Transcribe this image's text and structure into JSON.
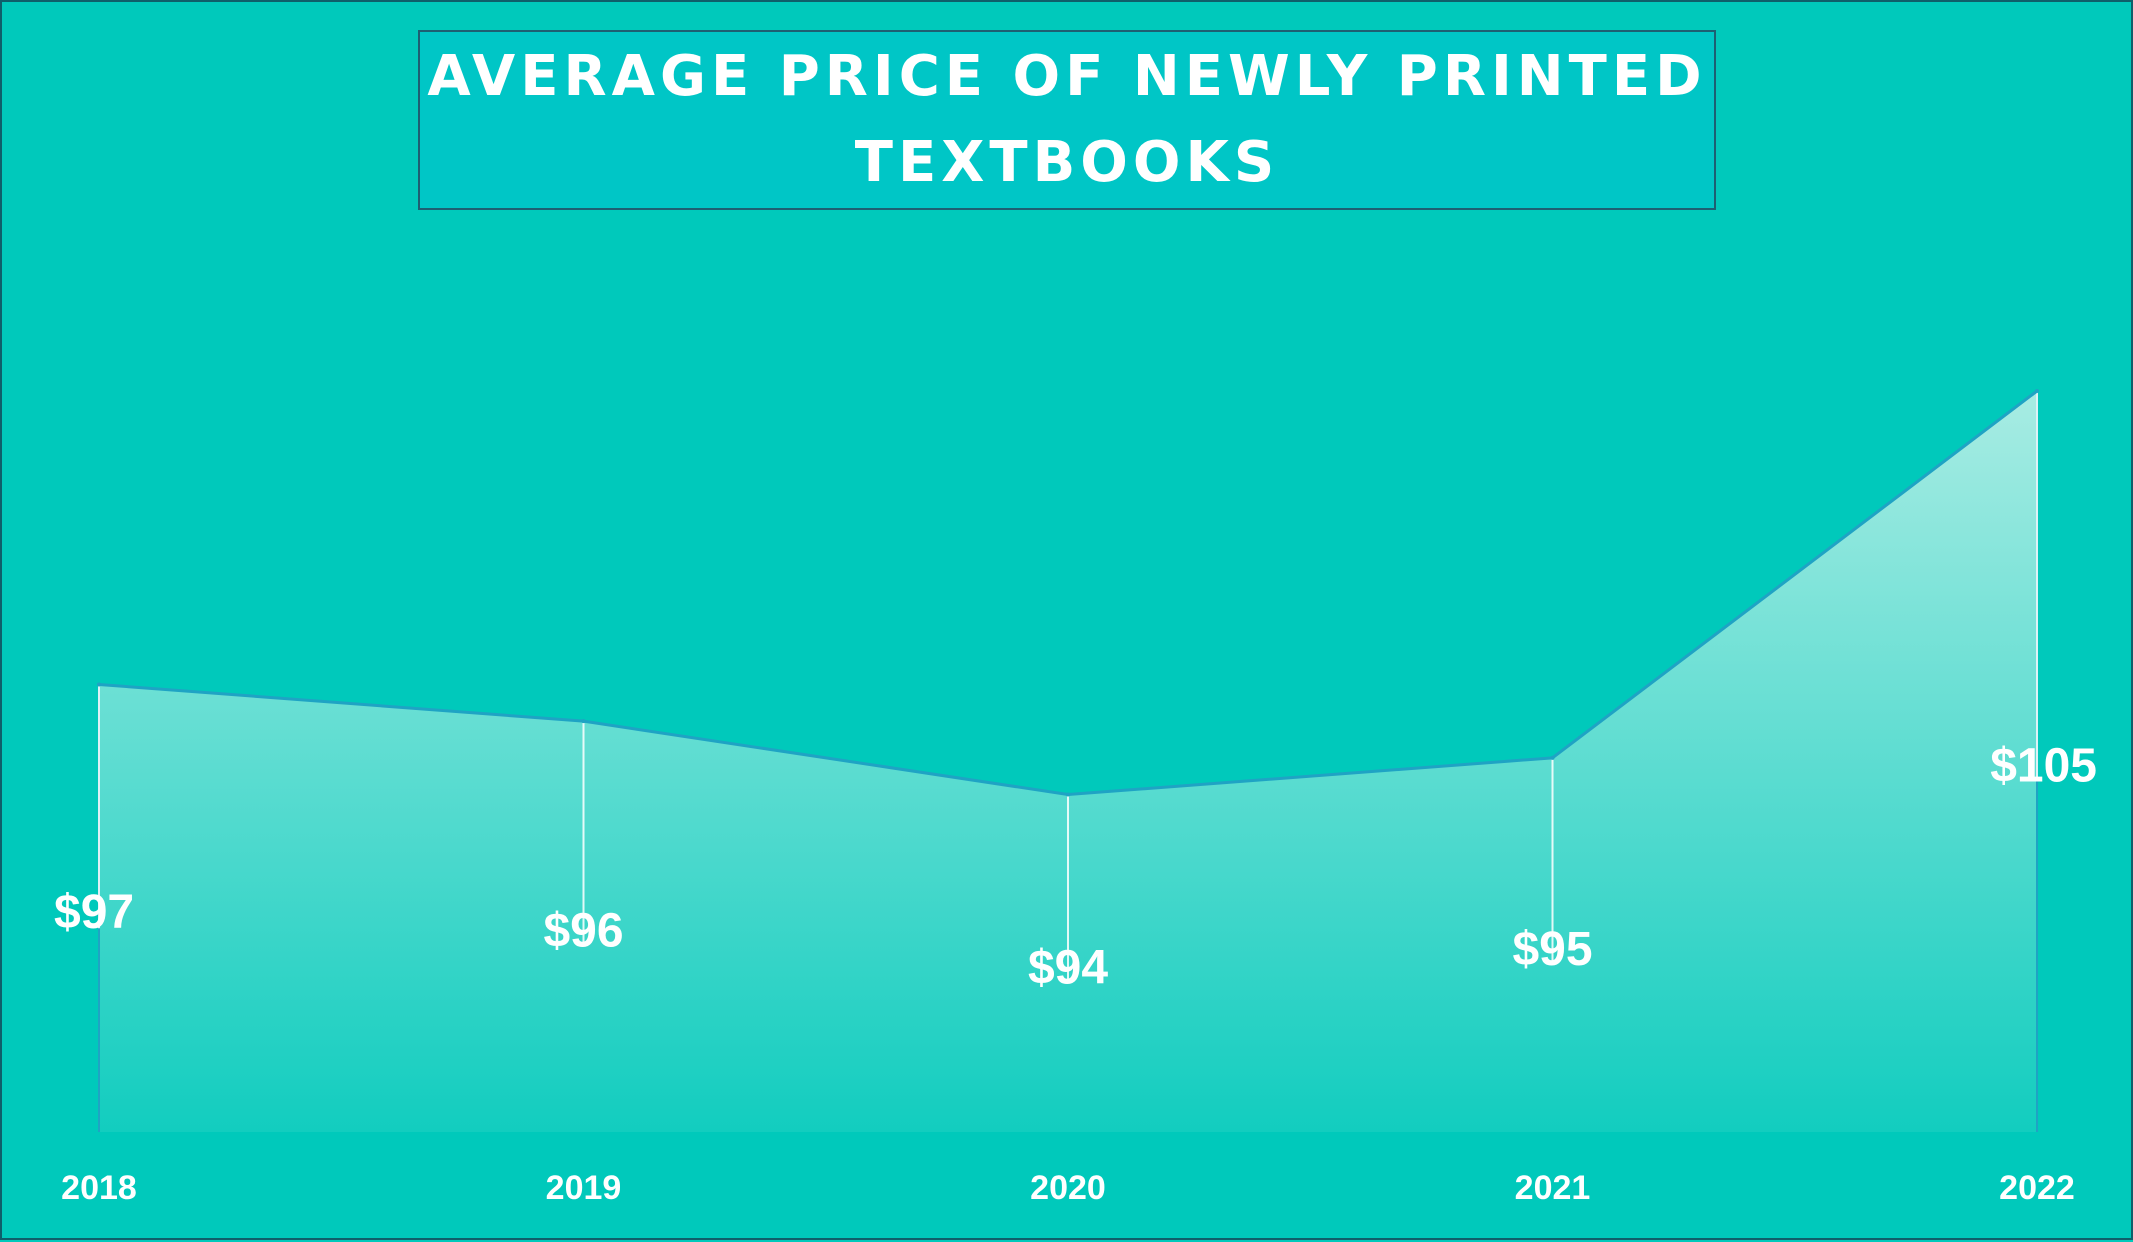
{
  "chart_data": {
    "type": "area",
    "title": "AVERAGE PRICE OF NEWLY PRINTED TEXTBOOKS",
    "categories": [
      "2018",
      "2019",
      "2020",
      "2021",
      "2022"
    ],
    "series": [
      {
        "values": [
          97,
          96,
          94,
          95,
          105
        ],
        "data_labels": [
          "$97",
          "$96",
          "$94",
          "$95",
          "$105"
        ]
      }
    ],
    "xlabel": "",
    "ylabel": "",
    "ylim": [
      84.8,
      106.5
    ],
    "grid": false,
    "legend": "none",
    "colors": {
      "background": "#00c9bb",
      "title_box": "#00c6c6",
      "line": "#1fa3c4",
      "area_top": "#a8ece3",
      "area_bottom": "#12cdbf",
      "text": "#ffffff"
    }
  }
}
